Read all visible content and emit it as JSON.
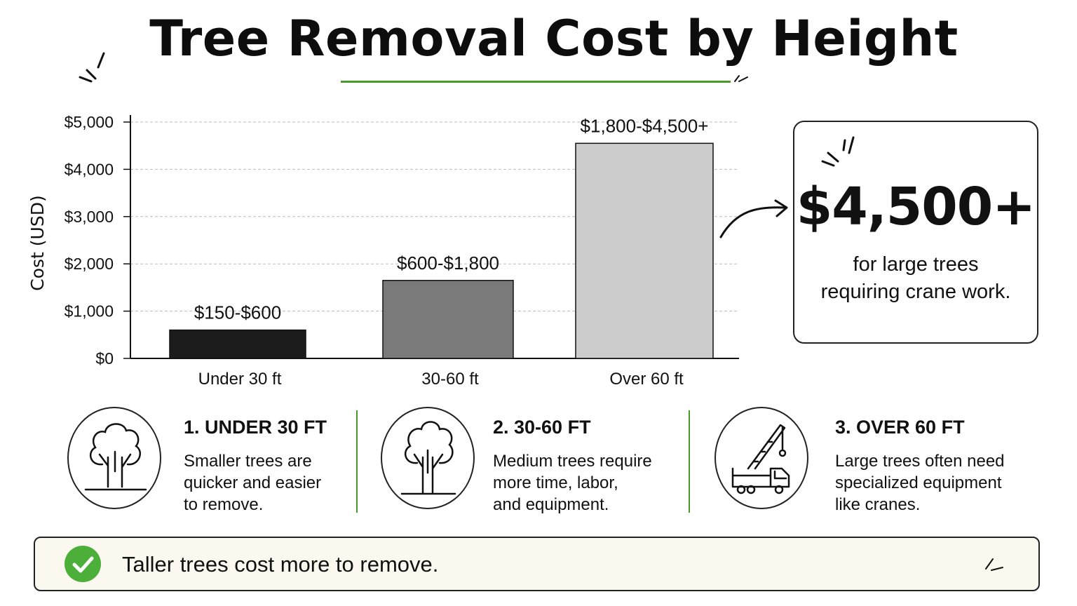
{
  "title": "Tree Removal Cost by Height",
  "colors": {
    "accent_green": "#4a9a2a",
    "check_green": "#4caf3a",
    "footer_bg": "#fbf8ef"
  },
  "chart_data": {
    "type": "bar",
    "title": "",
    "ylabel": "Cost (USD)",
    "xlabel": "",
    "ylim": [
      0,
      5000
    ],
    "yticks": [
      0,
      1000,
      2000,
      3000,
      4000,
      5000
    ],
    "ytick_labels": [
      "$0",
      "$1,000",
      "$2,000",
      "$3,000",
      "$4,000",
      "$5,000"
    ],
    "grid": "horizontal-dashed",
    "categories": [
      "Under 30 ft",
      "30-60 ft",
      "Over 60 ft"
    ],
    "values": [
      600,
      1650,
      4550
    ],
    "data_labels": [
      "$150-$600",
      "$600-$1,800",
      "$1,800-$4,500+"
    ],
    "bar_colors": [
      "#1c1c1c",
      "#7a7a7a",
      "#cccccc"
    ]
  },
  "callout": {
    "value": "$4,500+",
    "text_line1": "for large trees",
    "text_line2": "requiring crane work."
  },
  "categories": [
    {
      "title": "1. UNDER 30 FT",
      "desc_lines": [
        "Smaller trees are",
        "quicker and easier",
        "to remove."
      ],
      "icon": "tree-icon"
    },
    {
      "title": "2. 30-60 FT",
      "desc_lines": [
        "Medium trees require",
        "more time, labor,",
        "and equipment."
      ],
      "icon": "tree-icon"
    },
    {
      "title": "3. OVER 60 FT",
      "desc_lines": [
        "Large trees often need",
        "specialized equipment",
        "like cranes."
      ],
      "icon": "crane-truck-icon"
    }
  ],
  "footer": {
    "text": "Taller trees cost more to remove.",
    "icon": "checkmark-icon"
  }
}
